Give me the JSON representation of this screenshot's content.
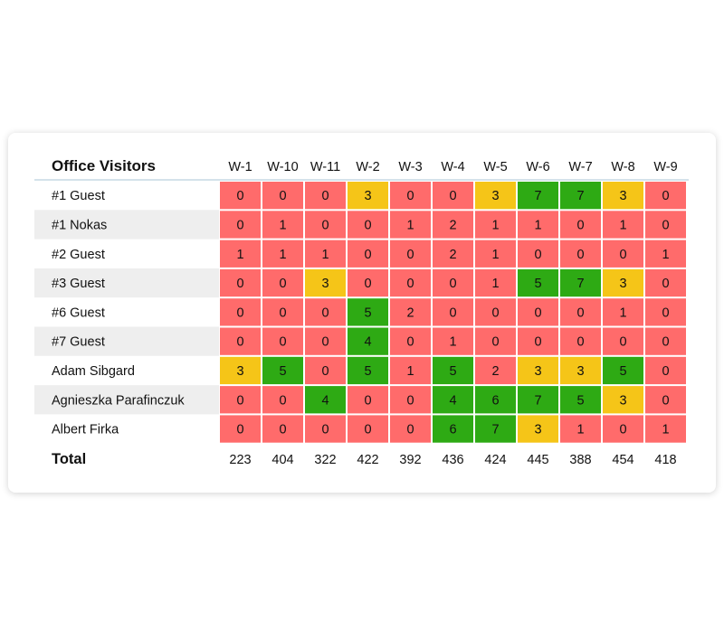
{
  "chart_data": {
    "type": "heatmap",
    "title": "Office Visitors",
    "columns": [
      "W-1",
      "W-10",
      "W-11",
      "W-2",
      "W-3",
      "W-4",
      "W-5",
      "W-6",
      "W-7",
      "W-8",
      "W-9"
    ],
    "rows": [
      "#1 Guest",
      "#1 Nokas",
      "#2 Guest",
      "#3 Guest",
      "#6 Guest",
      "#7 Guest",
      "Adam Sibgard",
      "Agnieszka Parafinczuk",
      "Albert Firka"
    ],
    "values": [
      [
        0,
        0,
        0,
        3,
        0,
        0,
        3,
        7,
        7,
        3,
        0
      ],
      [
        0,
        1,
        0,
        0,
        1,
        2,
        1,
        1,
        0,
        1,
        0
      ],
      [
        1,
        1,
        1,
        0,
        0,
        2,
        1,
        0,
        0,
        0,
        1
      ],
      [
        0,
        0,
        3,
        0,
        0,
        0,
        1,
        5,
        7,
        3,
        0
      ],
      [
        0,
        0,
        0,
        5,
        2,
        0,
        0,
        0,
        0,
        1,
        0
      ],
      [
        0,
        0,
        0,
        4,
        0,
        1,
        0,
        0,
        0,
        0,
        0
      ],
      [
        3,
        5,
        0,
        5,
        1,
        5,
        2,
        3,
        3,
        5,
        0
      ],
      [
        0,
        0,
        4,
        0,
        0,
        4,
        6,
        7,
        5,
        3,
        0
      ],
      [
        0,
        0,
        0,
        0,
        0,
        6,
        7,
        3,
        1,
        0,
        1
      ]
    ],
    "total_label": "Total",
    "totals": [
      223,
      404,
      322,
      422,
      392,
      436,
      424,
      445,
      388,
      454,
      418
    ],
    "colors": {
      "low": "#ff6b6b",
      "mid": "#f5c518",
      "high": "#2eaa14",
      "row_stripe": "#eeeeee",
      "header_rule": "#a8c4d6"
    }
  }
}
